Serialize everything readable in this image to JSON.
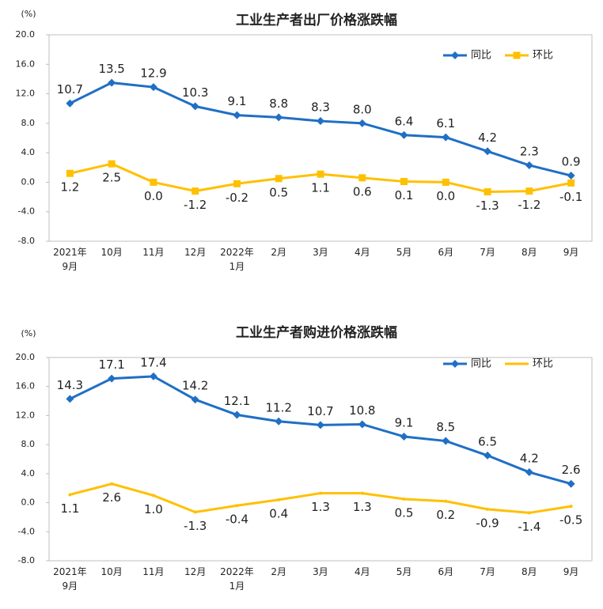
{
  "chart_data": [
    {
      "type": "line",
      "title": "工业生产者出厂价格涨跌幅",
      "y_label": "(%)",
      "categories": [
        "2021年\n9月",
        "10月",
        "11月",
        "12月",
        "2022年\n1月",
        "2月",
        "3月",
        "4月",
        "5月",
        "6月",
        "7月",
        "8月",
        "9月"
      ],
      "series": [
        {
          "name": "同比",
          "color": "#1f6fc5",
          "marker": "diamond",
          "values": [
            10.7,
            13.5,
            12.9,
            10.3,
            9.1,
            8.8,
            8.3,
            8.0,
            6.4,
            6.1,
            4.2,
            2.3,
            0.9
          ],
          "value_labels": [
            "10.7",
            "13.5",
            "12.9",
            "10.3",
            "9.1",
            "8.8",
            "8.3",
            "8.0",
            "6.4",
            "6.1",
            "4.2",
            "2.3",
            "0.9"
          ]
        },
        {
          "name": "环比",
          "color": "#ffc000",
          "marker": "square",
          "values": [
            1.2,
            2.5,
            0.0,
            -1.2,
            -0.2,
            0.5,
            1.1,
            0.6,
            0.1,
            0.0,
            -1.3,
            -1.2,
            -0.1
          ],
          "value_labels": [
            "1.2",
            "2.5",
            "0.0",
            "-1.2",
            "-0.2",
            "0.5",
            "1.1",
            "0.6",
            "0.1",
            "0.0",
            "-1.3",
            "-1.2",
            "-0.1"
          ]
        }
      ],
      "ylim": [
        -8,
        20
      ],
      "yticks": [
        {
          "value": -8,
          "label": "-8.0"
        },
        {
          "value": -4,
          "label": "-4.0"
        },
        {
          "value": 0,
          "label": "0.0"
        },
        {
          "value": 4,
          "label": "4.0"
        },
        {
          "value": 8,
          "label": "8.0"
        },
        {
          "value": 12,
          "label": "12.0"
        },
        {
          "value": 16,
          "label": "16.0"
        },
        {
          "value": 20,
          "label": "20.0"
        }
      ],
      "grid": false,
      "legend": "top-right"
    },
    {
      "type": "line",
      "title": "工业生产者购进价格涨跌幅",
      "y_label": "(%)",
      "categories": [
        "2021年\n9月",
        "10月",
        "11月",
        "12月",
        "2022年\n1月",
        "2月",
        "3月",
        "4月",
        "5月",
        "6月",
        "7月",
        "8月",
        "9月"
      ],
      "series": [
        {
          "name": "同比",
          "color": "#1f6fc5",
          "marker": "diamond",
          "values": [
            14.3,
            17.1,
            17.4,
            14.2,
            12.1,
            11.2,
            10.7,
            10.8,
            9.1,
            8.5,
            6.5,
            4.2,
            2.6
          ],
          "value_labels": [
            "14.3",
            "17.1",
            "17.4",
            "14.2",
            "12.1",
            "11.2",
            "10.7",
            "10.8",
            "9.1",
            "8.5",
            "6.5",
            "4.2",
            "2.6"
          ]
        },
        {
          "name": "环比",
          "color": "#ffc000",
          "marker": "none",
          "values": [
            1.1,
            2.6,
            1.0,
            -1.3,
            -0.4,
            0.4,
            1.3,
            1.3,
            0.5,
            0.2,
            -0.9,
            -1.4,
            -0.5
          ],
          "value_labels": [
            "1.1",
            "2.6",
            "1.0",
            "-1.3",
            "-0.4",
            "0.4",
            "1.3",
            "1.3",
            "0.5",
            "0.2",
            "-0.9",
            "-1.4",
            "-0.5"
          ]
        }
      ],
      "ylim": [
        -8,
        20
      ],
      "yticks": [
        {
          "value": -8,
          "label": "-8.0"
        },
        {
          "value": -4,
          "label": "-4.0"
        },
        {
          "value": 0,
          "label": "0.0"
        },
        {
          "value": 4,
          "label": "4.0"
        },
        {
          "value": 8,
          "label": "8.0"
        },
        {
          "value": 12,
          "label": "12.0"
        },
        {
          "value": 16,
          "label": "16.0"
        },
        {
          "value": 20,
          "label": "20.0"
        }
      ],
      "grid": false,
      "legend": "top-right"
    }
  ]
}
